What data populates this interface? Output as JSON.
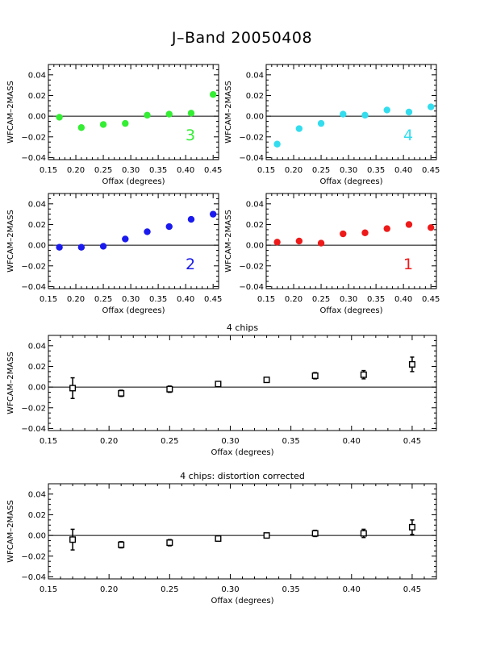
{
  "page": {
    "title": "J–Band 20050408"
  },
  "chart_data": [
    {
      "type": "scatter",
      "title": "",
      "xlabel": "Offax (degrees)",
      "ylabel": "WFCAM–2MASS",
      "xlim": [
        0.15,
        0.46
      ],
      "ylim": [
        -0.042,
        0.05
      ],
      "xticks": [
        0.15,
        0.2,
        0.25,
        0.3,
        0.35,
        0.4,
        0.45
      ],
      "xtick_labels": [
        "0.15",
        "0.20",
        "0.25",
        "0.30",
        "0.35",
        "0.40",
        "0.45"
      ],
      "yticks": [
        0.04,
        0.02,
        0.0,
        -0.02,
        -0.04
      ],
      "ytick_labels": [
        "0.04",
        "0.02",
        "0.00",
        "−0.02",
        "−0.04"
      ],
      "annotation": "3",
      "color": "#33ee33",
      "marker": "filled-circle",
      "series": [
        {
          "x": [
            0.17,
            0.21,
            0.25,
            0.29,
            0.33,
            0.37,
            0.41,
            0.45
          ],
          "y": [
            -0.001,
            -0.011,
            -0.008,
            -0.007,
            0.001,
            0.002,
            0.003,
            0.021
          ]
        }
      ]
    },
    {
      "type": "scatter",
      "title": "",
      "xlabel": "Offax (degrees)",
      "ylabel": "WFCAM–2MASS",
      "xlim": [
        0.15,
        0.46
      ],
      "ylim": [
        -0.042,
        0.05
      ],
      "xticks": [
        0.15,
        0.2,
        0.25,
        0.3,
        0.35,
        0.4,
        0.45
      ],
      "xtick_labels": [
        "0.15",
        "0.20",
        "0.25",
        "0.30",
        "0.35",
        "0.40",
        "0.45"
      ],
      "yticks": [
        0.04,
        0.02,
        0.0,
        -0.02,
        -0.04
      ],
      "ytick_labels": [
        "0.04",
        "0.02",
        "0.00",
        "−0.02",
        "−0.04"
      ],
      "annotation": "4",
      "color": "#33ddee",
      "marker": "filled-circle",
      "series": [
        {
          "x": [
            0.17,
            0.21,
            0.25,
            0.29,
            0.33,
            0.37,
            0.41,
            0.45
          ],
          "y": [
            -0.027,
            -0.012,
            -0.007,
            0.002,
            0.001,
            0.006,
            0.004,
            0.009
          ]
        }
      ]
    },
    {
      "type": "scatter",
      "title": "",
      "xlabel": "Offax (degrees)",
      "ylabel": "WFCAM–2MASS",
      "xlim": [
        0.15,
        0.46
      ],
      "ylim": [
        -0.042,
        0.05
      ],
      "xticks": [
        0.15,
        0.2,
        0.25,
        0.3,
        0.35,
        0.4,
        0.45
      ],
      "xtick_labels": [
        "0.15",
        "0.20",
        "0.25",
        "0.30",
        "0.35",
        "0.40",
        "0.45"
      ],
      "yticks": [
        0.04,
        0.02,
        0.0,
        -0.02,
        -0.04
      ],
      "ytick_labels": [
        "0.04",
        "0.02",
        "0.00",
        "−0.02",
        "−0.04"
      ],
      "annotation": "2",
      "color": "#1a1aee",
      "marker": "filled-circle",
      "series": [
        {
          "x": [
            0.17,
            0.21,
            0.25,
            0.29,
            0.33,
            0.37,
            0.41,
            0.45
          ],
          "y": [
            -0.002,
            -0.002,
            -0.001,
            0.006,
            0.013,
            0.018,
            0.025,
            0.03
          ]
        }
      ]
    },
    {
      "type": "scatter",
      "title": "",
      "xlabel": "Offax (degrees)",
      "ylabel": "WFCAM–2MASS",
      "xlim": [
        0.15,
        0.46
      ],
      "ylim": [
        -0.042,
        0.05
      ],
      "xticks": [
        0.15,
        0.2,
        0.25,
        0.3,
        0.35,
        0.4,
        0.45
      ],
      "xtick_labels": [
        "0.15",
        "0.20",
        "0.25",
        "0.30",
        "0.35",
        "0.40",
        "0.45"
      ],
      "yticks": [
        0.04,
        0.02,
        0.0,
        -0.02,
        -0.04
      ],
      "ytick_labels": [
        "0.04",
        "0.02",
        "0.00",
        "−0.02",
        "−0.04"
      ],
      "annotation": "1",
      "color": "#ee1a1a",
      "marker": "filled-circle",
      "series": [
        {
          "x": [
            0.17,
            0.21,
            0.25,
            0.29,
            0.33,
            0.37,
            0.41,
            0.45
          ],
          "y": [
            0.003,
            0.004,
            0.002,
            0.011,
            0.012,
            0.016,
            0.02,
            0.017
          ]
        }
      ]
    },
    {
      "type": "scatter",
      "title": "4 chips",
      "xlabel": "Offax (degrees)",
      "ylabel": "WFCAM–2MASS",
      "xlim": [
        0.15,
        0.47
      ],
      "ylim": [
        -0.042,
        0.05
      ],
      "xticks": [
        0.15,
        0.2,
        0.25,
        0.3,
        0.35,
        0.4,
        0.45
      ],
      "xtick_labels": [
        "0.15",
        "0.20",
        "0.25",
        "0.30",
        "0.35",
        "0.40",
        "0.45"
      ],
      "yticks": [
        0.04,
        0.02,
        0.0,
        -0.02,
        -0.04
      ],
      "ytick_labels": [
        "0.04",
        "0.02",
        "0.00",
        "−0.02",
        "−0.04"
      ],
      "annotation": "",
      "color": "#000000",
      "marker": "open-square",
      "series": [
        {
          "x": [
            0.17,
            0.21,
            0.25,
            0.29,
            0.33,
            0.37,
            0.41,
            0.45
          ],
          "y": [
            -0.001,
            -0.006,
            -0.002,
            0.003,
            0.007,
            0.011,
            0.012,
            0.022
          ],
          "err": [
            0.01,
            0.003,
            0.003,
            0.001,
            0.001,
            0.003,
            0.004,
            0.007
          ]
        }
      ]
    },
    {
      "type": "scatter",
      "title": "4 chips: distortion corrected",
      "xlabel": "Offax (degrees)",
      "ylabel": "WFCAM–2MASS",
      "xlim": [
        0.15,
        0.47
      ],
      "ylim": [
        -0.042,
        0.05
      ],
      "xticks": [
        0.15,
        0.2,
        0.25,
        0.3,
        0.35,
        0.4,
        0.45
      ],
      "xtick_labels": [
        "0.15",
        "0.20",
        "0.25",
        "0.30",
        "0.35",
        "0.40",
        "0.45"
      ],
      "yticks": [
        0.04,
        0.02,
        0.0,
        -0.02,
        -0.04
      ],
      "ytick_labels": [
        "0.04",
        "0.02",
        "0.00",
        "−0.02",
        "−0.04"
      ],
      "annotation": "",
      "color": "#000000",
      "marker": "open-square",
      "series": [
        {
          "x": [
            0.17,
            0.21,
            0.25,
            0.29,
            0.33,
            0.37,
            0.41,
            0.45
          ],
          "y": [
            -0.004,
            -0.009,
            -0.007,
            -0.003,
            0.0,
            0.002,
            0.002,
            0.008
          ],
          "err": [
            0.01,
            0.003,
            0.003,
            0.001,
            0.001,
            0.003,
            0.004,
            0.007
          ]
        }
      ]
    }
  ]
}
